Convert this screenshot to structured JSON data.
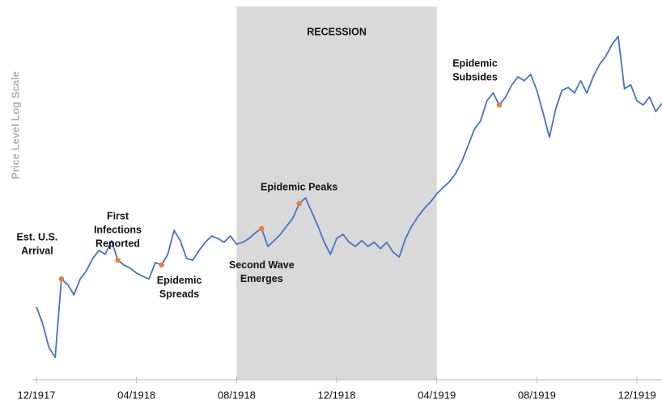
{
  "chart_data": {
    "type": "line",
    "y_label": "Price Level Log Scale",
    "log_scale": true,
    "ylim": [
      50,
      200
    ],
    "categories": [
      "12/1917",
      null,
      null,
      null,
      null,
      null,
      null,
      null,
      null,
      null,
      null,
      null,
      null,
      null,
      null,
      null,
      "04/1918",
      null,
      null,
      null,
      null,
      null,
      null,
      null,
      null,
      null,
      null,
      null,
      null,
      null,
      null,
      null,
      "08/1918",
      null,
      null,
      null,
      null,
      null,
      null,
      null,
      null,
      null,
      null,
      null,
      null,
      null,
      null,
      null,
      "12/1918",
      null,
      null,
      null,
      null,
      null,
      null,
      null,
      null,
      null,
      null,
      null,
      null,
      null,
      null,
      null,
      "04/1919",
      null,
      null,
      null,
      null,
      null,
      null,
      null,
      null,
      null,
      null,
      null,
      null,
      null,
      null,
      null,
      "08/1919",
      null,
      null,
      null,
      null,
      null,
      null,
      null,
      null,
      null,
      null,
      null,
      null,
      null,
      null,
      null,
      "12/1919",
      null,
      null,
      null,
      null
    ],
    "series": [
      {
        "color": "#4472c4",
        "values": [
          64.0,
          60.1,
          54.8,
          52.8,
          71.2,
          69.7,
          67.0,
          71.2,
          73.5,
          77.0,
          79.4,
          78.2,
          82.4,
          76.5,
          75.1,
          74.2,
          72.8,
          71.9,
          71.2,
          75.8,
          75.1,
          78.2,
          85.7,
          82.4,
          77.0,
          76.5,
          79.4,
          81.9,
          83.9,
          83.1,
          81.9,
          83.9,
          81.3,
          81.9,
          83.1,
          84.9,
          86.3,
          80.6,
          82.4,
          84.4,
          87.1,
          89.8,
          94.9,
          97.0,
          92.0,
          87.1,
          81.9,
          78.2,
          83.1,
          84.4,
          81.9,
          80.6,
          82.4,
          80.6,
          81.9,
          79.9,
          81.9,
          78.9,
          77.4,
          83.1,
          87.1,
          90.3,
          93.2,
          95.5,
          98.5,
          100.9,
          103.1,
          106.4,
          111.4,
          118.4,
          126.0,
          130.0,
          140.4,
          144.7,
          138.2,
          142.5,
          149.3,
          153.9,
          151.6,
          155.4,
          146.1,
          134.0,
          122.2,
          136.1,
          146.1,
          147.8,
          144.7,
          151.6,
          144.7,
          153.9,
          161.2,
          166.3,
          174.1,
          179.5,
          147.0,
          149.3,
          140.4,
          138.2,
          142.5,
          134.8,
          139.1
        ]
      }
    ],
    "shade": {
      "from": "08/1918",
      "to": "04/1919",
      "label": "RECESSION",
      "color": "#d9d9d9"
    },
    "annotations": [
      {
        "lines": [
          "Est. U.S.",
          "Arrival"
        ],
        "at": 4,
        "position": "above-left"
      },
      {
        "lines": [
          "First",
          "Infections",
          "Reported"
        ],
        "at": 13,
        "position": "above"
      },
      {
        "lines": [
          "Epidemic",
          "Spreads"
        ],
        "at": 20,
        "position": "below-right"
      },
      {
        "lines": [
          "Second Wave",
          "Emerges"
        ],
        "at": 36,
        "position": "below"
      },
      {
        "lines": [
          "Epidemic Peaks"
        ],
        "at": 42,
        "position": "above"
      },
      {
        "lines": [
          "Epidemic",
          "Subsides"
        ],
        "at": 74,
        "position": "above-left"
      }
    ],
    "marker_color": "#ed7d31"
  }
}
